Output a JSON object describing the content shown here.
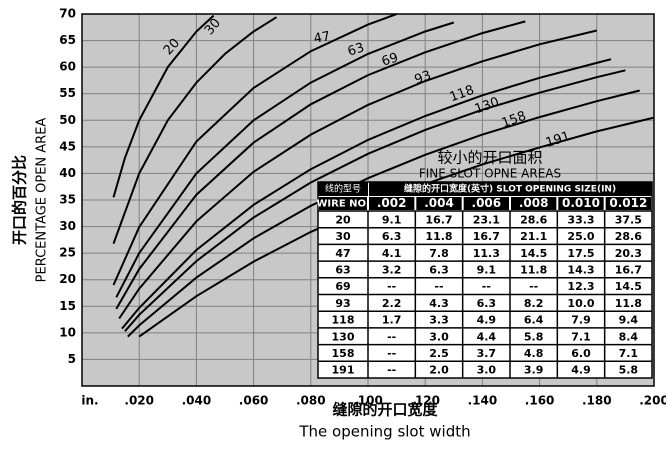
{
  "chart_data": {
    "type": "line",
    "y_label_cn": "开口的百分比",
    "y_label": "PERCENTAGE OPEN AREA",
    "x_label_cn": "缝隙的开口宽度",
    "x_label": "The opening slot width",
    "xlim": [
      0,
      0.2
    ],
    "ylim": [
      0,
      70
    ],
    "xticks": [
      {
        "value": 0,
        "label": "in."
      },
      {
        "value": 0.02,
        "label": ".020"
      },
      {
        "value": 0.04,
        "label": ".040"
      },
      {
        "value": 0.06,
        "label": ".060"
      },
      {
        "value": 0.08,
        "label": ".080"
      },
      {
        "value": 0.1,
        "label": ".100"
      },
      {
        "value": 0.12,
        "label": ".120"
      },
      {
        "value": 0.14,
        "label": ".140"
      },
      {
        "value": 0.16,
        "label": ".160"
      },
      {
        "value": 0.18,
        "label": ".180"
      },
      {
        "value": 0.2,
        "label": ".200"
      }
    ],
    "yticks": [
      5,
      10,
      15,
      20,
      25,
      30,
      35,
      40,
      45,
      50,
      55,
      60,
      65,
      70
    ],
    "grid": true,
    "background": "#c8c8c8",
    "grid_color": "#808080",
    "series": [
      {
        "name": "20",
        "color": "#000",
        "x": [
          0.011,
          0.015,
          0.02,
          0.03,
          0.04,
          0.046
        ],
        "values": [
          35.5,
          42.9,
          50,
          60,
          66.7,
          69.7
        ]
      },
      {
        "name": "30",
        "color": "#000",
        "x": [
          0.011,
          0.02,
          0.03,
          0.04,
          0.05,
          0.06,
          0.068
        ],
        "values": [
          26.8,
          40,
          50,
          57.1,
          62.5,
          66.7,
          69.4
        ]
      },
      {
        "name": "47",
        "color": "#000",
        "x": [
          0.011,
          0.02,
          0.04,
          0.06,
          0.08,
          0.1,
          0.11
        ],
        "values": [
          19,
          29.9,
          46,
          56.1,
          63,
          68,
          70
        ]
      },
      {
        "name": "63",
        "color": "#000",
        "x": [
          0.012,
          0.02,
          0.04,
          0.06,
          0.08,
          0.1,
          0.12,
          0.13
        ],
        "values": [
          16.7,
          25,
          40,
          50,
          57.1,
          62.5,
          66.7,
          68.4
        ]
      },
      {
        "name": "69",
        "color": "#000",
        "x": [
          0.012,
          0.02,
          0.04,
          0.06,
          0.08,
          0.1,
          0.12,
          0.14,
          0.155
        ],
        "values": [
          14.5,
          22,
          36,
          45.8,
          53,
          58.5,
          62.8,
          66.4,
          68.6
        ]
      },
      {
        "name": "93",
        "color": "#000",
        "x": [
          0.013,
          0.02,
          0.04,
          0.06,
          0.08,
          0.1,
          0.12,
          0.14,
          0.16,
          0.18
        ],
        "values": [
          12.7,
          18.3,
          31,
          40.3,
          47.3,
          52.9,
          57.4,
          61.1,
          64.3,
          66.9
        ]
      },
      {
        "name": "118",
        "color": "#000",
        "x": [
          0.014,
          0.02,
          0.04,
          0.06,
          0.08,
          0.1,
          0.12,
          0.14,
          0.16,
          0.18,
          0.185
        ],
        "values": [
          10.8,
          14.7,
          25.6,
          34.1,
          40.8,
          46.3,
          50.8,
          54.7,
          58,
          60.8,
          61.5
        ]
      },
      {
        "name": "130",
        "color": "#000",
        "x": [
          0.015,
          0.02,
          0.04,
          0.06,
          0.08,
          0.1,
          0.12,
          0.14,
          0.16,
          0.18,
          0.19
        ],
        "values": [
          10.3,
          13.4,
          23.5,
          31.7,
          38.3,
          43.7,
          48.2,
          52,
          55.2,
          58.1,
          59.4
        ]
      },
      {
        "name": "158",
        "color": "#000",
        "x": [
          0.016,
          0.02,
          0.04,
          0.06,
          0.08,
          0.1,
          0.12,
          0.14,
          0.16,
          0.18,
          0.195
        ],
        "values": [
          9.3,
          11.4,
          20.4,
          27.8,
          33.9,
          39.1,
          43.5,
          47.3,
          50.6,
          53.6,
          55.6
        ]
      },
      {
        "name": "191",
        "color": "#000",
        "x": [
          0.02,
          0.04,
          0.06,
          0.08,
          0.1,
          0.12,
          0.14,
          0.16,
          0.18,
          0.2
        ],
        "values": [
          9.3,
          16.9,
          23.4,
          29,
          33.8,
          38,
          41.7,
          44.9,
          47.9,
          50.5
        ]
      }
    ]
  },
  "table": {
    "title": "较小的开口面积",
    "subtitle": "FINE SLOT OPNE AREAS",
    "header_top": [
      "线的型号",
      "缝隙的开口宽度(英寸) SLOT OPENING SIZE(IN)"
    ],
    "columns": [
      "WIRE NO.",
      ".002",
      ".004",
      ".006",
      ".008",
      "0.010",
      "0.012"
    ],
    "rows": [
      [
        "20",
        "9.1",
        "16.7",
        "23.1",
        "28.6",
        "33.3",
        "37.5"
      ],
      [
        "30",
        "6.3",
        "11.8",
        "16.7",
        "21.1",
        "25.0",
        "28.6"
      ],
      [
        "47",
        "4.1",
        "7.8",
        "11.3",
        "14.5",
        "17.5",
        "20.3"
      ],
      [
        "63",
        "3.2",
        "6.3",
        "9.1",
        "11.8",
        "14.3",
        "16.7"
      ],
      [
        "69",
        "--",
        "--",
        "--",
        "--",
        "12.3",
        "14.5"
      ],
      [
        "93",
        "2.2",
        "4.3",
        "6.3",
        "8.2",
        "10.0",
        "11.8"
      ],
      [
        "118",
        "1.7",
        "3.3",
        "4.9",
        "6.4",
        "7.9",
        "9.4"
      ],
      [
        "130",
        "--",
        "3.0",
        "4.4",
        "5.8",
        "7.1",
        "8.4"
      ],
      [
        "158",
        "--",
        "2.5",
        "3.7",
        "4.8",
        "6.0",
        "7.1"
      ],
      [
        "191",
        "--",
        "2.0",
        "3.0",
        "3.9",
        "4.9",
        "5.8"
      ]
    ]
  }
}
